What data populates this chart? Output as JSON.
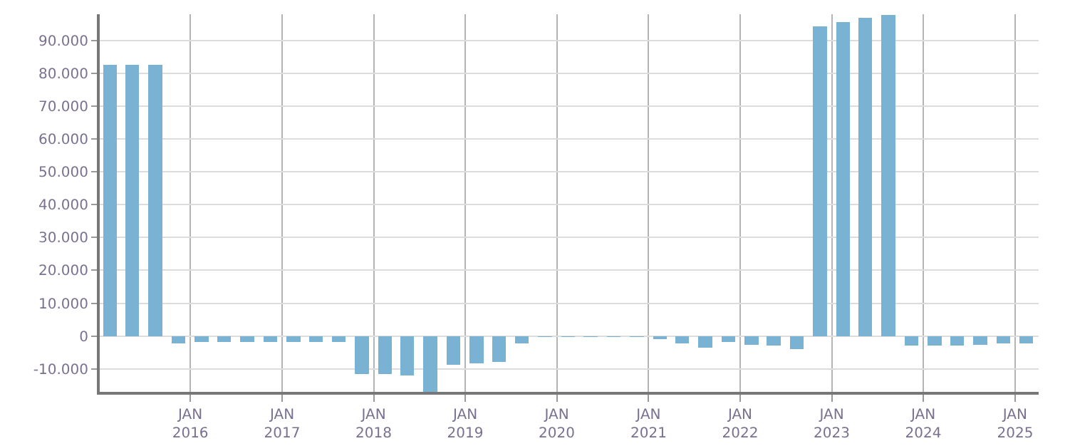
{
  "chart_data": {
    "type": "bar",
    "color": "#7ab2d4",
    "x": [
      "2015-02-15",
      "2015-05-15",
      "2015-08-15",
      "2015-11-15",
      "2016-02-15",
      "2016-05-15",
      "2016-08-15",
      "2016-11-15",
      "2017-02-15",
      "2017-05-15",
      "2017-08-15",
      "2017-11-15",
      "2018-02-15",
      "2018-05-15",
      "2018-08-15",
      "2018-11-15",
      "2019-02-15",
      "2019-05-15",
      "2019-08-15",
      "2019-11-15",
      "2020-02-15",
      "2020-05-15",
      "2020-08-15",
      "2020-11-15",
      "2021-02-15",
      "2021-05-15",
      "2021-08-15",
      "2021-11-15",
      "2022-02-15",
      "2022-05-15",
      "2022-08-15",
      "2022-11-15",
      "2023-02-15",
      "2023-05-15",
      "2023-08-15",
      "2023-11-15",
      "2024-02-15",
      "2024-05-15",
      "2024-08-15",
      "2024-11-15",
      "2025-02-15"
    ],
    "values": [
      82500,
      82500,
      82500,
      -2200,
      -1800,
      -1800,
      -1800,
      -1800,
      -1800,
      -1800,
      -1800,
      -11500,
      -11500,
      -12100,
      -17000,
      -8700,
      -8300,
      -7800,
      -2200,
      -300,
      -300,
      -300,
      -300,
      -300,
      -900,
      -2200,
      -3500,
      -1800,
      -2600,
      -3000,
      -3900,
      94300,
      95600,
      96900,
      97800,
      -3000,
      -3000,
      -3000,
      -2600,
      -2200,
      -2200
    ],
    "xlim": [
      "2015-01-05",
      "2025-04-05"
    ],
    "xticks": [
      {
        "value": "2016-01-01",
        "label": "JAN\n2016"
      },
      {
        "value": "2017-01-01",
        "label": "JAN\n2017"
      },
      {
        "value": "2018-01-01",
        "label": "JAN\n2018"
      },
      {
        "value": "2019-01-01",
        "label": "JAN\n2019"
      },
      {
        "value": "2020-01-01",
        "label": "JAN\n2020"
      },
      {
        "value": "2021-01-01",
        "label": "JAN\n2021"
      },
      {
        "value": "2022-01-01",
        "label": "JAN\n2022"
      },
      {
        "value": "2023-01-01",
        "label": "JAN\n2023"
      },
      {
        "value": "2024-01-01",
        "label": "JAN\n2024"
      },
      {
        "value": "2025-01-01",
        "label": "JAN\n2025"
      }
    ],
    "ylim": [
      -17000,
      98000
    ],
    "yticks": [
      {
        "value": -10000,
        "label": "-10.000"
      },
      0,
      {
        "value": 10000,
        "label": "10.000"
      },
      {
        "value": 20000,
        "label": "20.000"
      },
      {
        "value": 30000,
        "label": "30.000"
      },
      {
        "value": 40000,
        "label": "40.000"
      },
      {
        "value": 50000,
        "label": "50.000"
      },
      {
        "value": 60000,
        "label": "60.000"
      },
      {
        "value": 70000,
        "label": "70.000"
      },
      {
        "value": 80000,
        "label": "80.000"
      },
      {
        "value": 90000,
        "label": "90.000"
      }
    ],
    "grid": true,
    "legend": false
  }
}
